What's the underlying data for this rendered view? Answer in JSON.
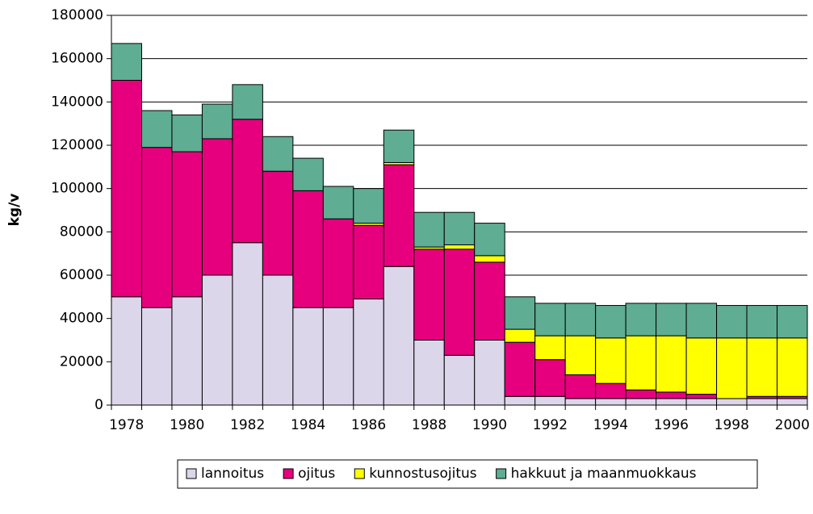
{
  "chart_data": {
    "type": "stacked_bar",
    "y_label": "kg/v",
    "categories": [
      "1978",
      null,
      "1980",
      null,
      "1982",
      null,
      "1984",
      null,
      "1986",
      null,
      "1988",
      null,
      "1990",
      null,
      "1992",
      null,
      "1994",
      null,
      "1996",
      null,
      "1998",
      null,
      "2000"
    ],
    "series": [
      {
        "name": "lannoitus",
        "color": "#dcd6ea",
        "values": [
          50000,
          45000,
          50000,
          60000,
          75000,
          60000,
          45000,
          45000,
          49000,
          64000,
          30000,
          23000,
          30000,
          4000,
          4000,
          3000,
          3000,
          3000,
          3000,
          3000,
          3000,
          3000,
          3000
        ]
      },
      {
        "name": "ojitus",
        "color": "#e6007e",
        "values": [
          100000,
          74000,
          67000,
          63000,
          57000,
          48000,
          54000,
          41000,
          34000,
          47000,
          42000,
          49000,
          36000,
          25000,
          17000,
          11000,
          7000,
          4000,
          3000,
          2000,
          0,
          1000,
          1000
        ]
      },
      {
        "name": "kunnostusojitus",
        "color": "#ffff00",
        "values": [
          0,
          0,
          0,
          0,
          0,
          0,
          0,
          0,
          1000,
          1000,
          1000,
          2000,
          3000,
          6000,
          11000,
          18000,
          21000,
          25000,
          26000,
          26000,
          28000,
          27000,
          27000
        ]
      },
      {
        "name": "hakkuut ja maanmuokkaus",
        "color": "#5fad93",
        "values": [
          17000,
          17000,
          17000,
          16000,
          16000,
          16000,
          15000,
          15000,
          16000,
          15000,
          16000,
          15000,
          15000,
          15000,
          15000,
          15000,
          15000,
          15000,
          15000,
          16000,
          15000,
          15000,
          15000
        ]
      }
    ],
    "ylim": [
      0,
      180000
    ],
    "yticks": [
      0,
      20000,
      40000,
      60000,
      80000,
      100000,
      120000,
      140000,
      160000,
      180000
    ],
    "grid": true,
    "legend": "bottom"
  }
}
